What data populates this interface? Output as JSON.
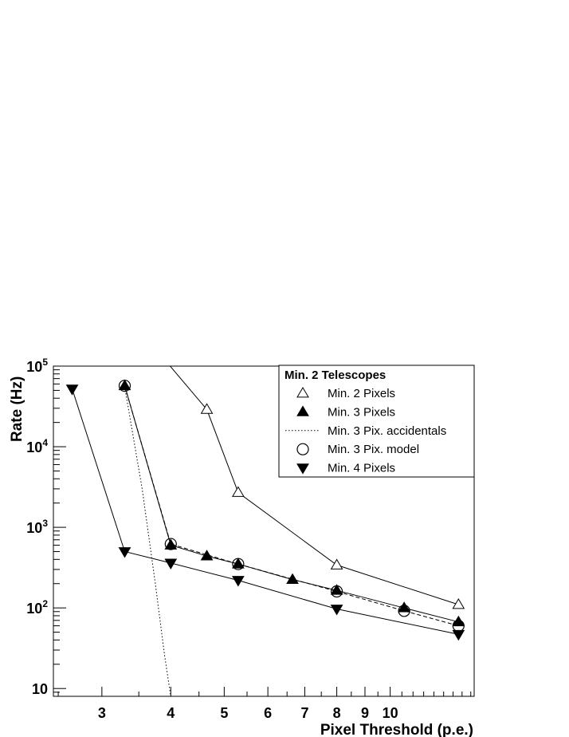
{
  "chart_data": {
    "type": "line",
    "x_scale": "log",
    "y_scale": "log",
    "xlim": [
      2.45,
      14.2
    ],
    "ylim": [
      8,
      100000
    ],
    "xlabel": "Pixel Threshold (p.e.)",
    "ylabel": "Rate (Hz)",
    "x_ticks": [
      3,
      4,
      5,
      6,
      7,
      8,
      9,
      10
    ],
    "y_ticks": [
      {
        "value": 10,
        "base": "10",
        "exp": ""
      },
      {
        "value": 100,
        "base": "10",
        "exp": "2"
      },
      {
        "value": 1000,
        "base": "10",
        "exp": "3"
      },
      {
        "value": 10000,
        "base": "10",
        "exp": "4"
      },
      {
        "value": 100000,
        "base": "10",
        "exp": "5"
      }
    ],
    "legend": {
      "title": "Min. 2 Telescopes",
      "position": "top-right"
    },
    "series": [
      {
        "name": "Min. 2 Pixels",
        "marker": "open-triangle-up",
        "line": "solid",
        "x": [
          3.9,
          4.65,
          5.3,
          8.0,
          13.3
        ],
        "y": [
          120000,
          29000,
          2700,
          340,
          110
        ]
      },
      {
        "name": "Min. 3 Pixels",
        "marker": "filled-triangle-up",
        "line": "solid",
        "x": [
          3.3,
          4.0,
          4.65,
          5.3,
          6.65,
          8.0,
          10.6,
          13.3
        ],
        "y": [
          57000,
          600,
          440,
          350,
          225,
          165,
          100,
          67
        ]
      },
      {
        "name": "Min. 3 Pix. accidentals",
        "marker": "none",
        "line": "dotted",
        "x": [
          3.3,
          3.55,
          3.75,
          3.9,
          4.0
        ],
        "y": [
          55000,
          3000,
          200,
          25,
          8
        ]
      },
      {
        "name": "Min. 3 Pix. model",
        "marker": "open-circle",
        "line": "dashed",
        "x": [
          3.3,
          4.0,
          5.3,
          8.0,
          10.6,
          13.3
        ],
        "y": [
          57000,
          620,
          350,
          160,
          92,
          60
        ]
      },
      {
        "name": "Min. 4 Pixels",
        "marker": "filled-triangle-down",
        "line": "solid",
        "x": [
          2.65,
          3.3,
          4.0,
          5.3,
          8.0,
          13.3
        ],
        "y": [
          52000,
          500,
          360,
          220,
          97,
          47
        ]
      }
    ]
  }
}
